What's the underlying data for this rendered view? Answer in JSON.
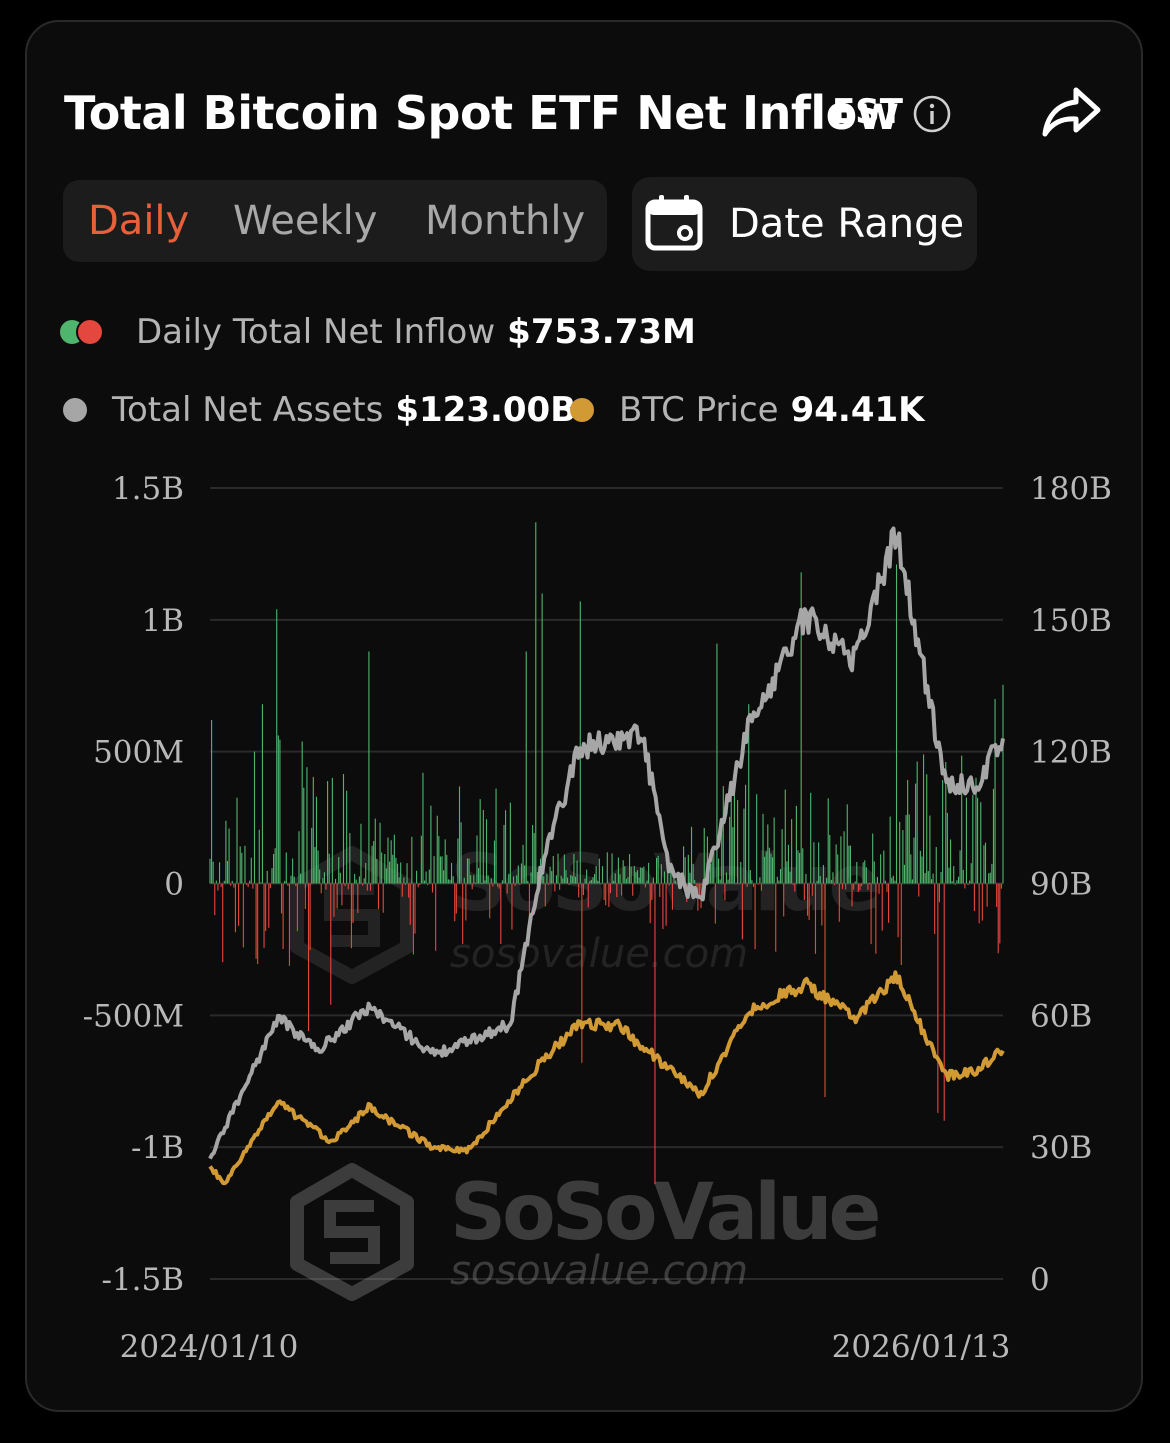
{
  "header": {
    "title": "Total Bitcoin Spot ETF Net Inflow",
    "timezone": "EST"
  },
  "tabs": [
    {
      "label": "Daily",
      "active": true
    },
    {
      "label": "Weekly",
      "active": false
    },
    {
      "label": "Monthly",
      "active": false
    }
  ],
  "date_range_label": "Date Range",
  "legend": {
    "inflow_label": "Daily Total Net Inflow",
    "inflow_value": "$753.73M",
    "assets_label": "Total Net Assets",
    "assets_value": "$123.00B",
    "price_label": "BTC Price",
    "price_value": "94.41K"
  },
  "watermark": {
    "brand": "SoSoValue",
    "url": "sosovalue.com"
  },
  "colors": {
    "accent": "#e8603a",
    "inflow_positive": "#4fb56d",
    "inflow_negative": "#e4473d",
    "net_assets_line": "#a6a6a6",
    "btc_price_line": "#d29a35"
  },
  "chart_data": {
    "type": "bar",
    "x_start": "2024/01/10",
    "x_end": "2026/01/13",
    "x_tick_labels": [
      "2024/01/10",
      "2026/01/13"
    ],
    "left_axis": {
      "ticks": [
        "1.5B",
        "1B",
        "500M",
        "0",
        "-500M",
        "-1B",
        "-1.5B"
      ],
      "ylim": [
        -1500000000,
        1500000000
      ]
    },
    "right_axis": {
      "ticks": [
        "180B",
        "150B",
        "120B",
        "90B",
        "60B",
        "30B",
        "0"
      ],
      "ylim": [
        0,
        180000000000
      ]
    },
    "grid": true,
    "series": [
      {
        "name": "Daily Total Net Inflow",
        "type": "bar",
        "axis": "left",
        "unit": "USD millions",
        "daily_points": 500,
        "approx_daily_values_sampled": [
          {
            "date": "2024/01/11",
            "value": 620
          },
          {
            "date": "2024/01/15",
            "value": -120
          },
          {
            "date": "2024/02/28",
            "value": 680
          },
          {
            "date": "2024/03/12",
            "value": 1040
          },
          {
            "date": "2024/04/10",
            "value": -560
          },
          {
            "date": "2024/05/01",
            "value": -460
          },
          {
            "date": "2024/06/05",
            "value": 880
          },
          {
            "date": "2024/07/25",
            "value": 420
          },
          {
            "date": "2024/10/01",
            "value": 360
          },
          {
            "date": "2024/10/29",
            "value": 880
          },
          {
            "date": "2024/11/07",
            "value": 1370
          },
          {
            "date": "2024/11/12",
            "value": 1100
          },
          {
            "date": "2024/12/17",
            "value": 1070
          },
          {
            "date": "2024/12/19",
            "value": -680
          },
          {
            "date": "2025/02/25",
            "value": -1140
          },
          {
            "date": "2025/04/23",
            "value": 910
          },
          {
            "date": "2025/05/22",
            "value": 680
          },
          {
            "date": "2025/07/10",
            "value": 1180
          },
          {
            "date": "2025/08/01",
            "value": -810
          },
          {
            "date": "2025/10/06",
            "value": 1210
          },
          {
            "date": "2025/11/13",
            "value": -870
          },
          {
            "date": "2025/11/20",
            "value": -900
          },
          {
            "date": "2026/01/05",
            "value": 700
          },
          {
            "date": "2026/01/13",
            "value": 753.73
          }
        ]
      },
      {
        "name": "Total Net Assets",
        "type": "line",
        "axis": "right",
        "unit": "USD billions",
        "points": [
          {
            "date": "2024/01/10",
            "value": 27.4
          },
          {
            "date": "2024/03/13",
            "value": 59.5
          },
          {
            "date": "2024/04/19",
            "value": 52
          },
          {
            "date": "2024/06/05",
            "value": 62
          },
          {
            "date": "2024/08/05",
            "value": 51
          },
          {
            "date": "2024/10/14",
            "value": 58
          },
          {
            "date": "2024/11/12",
            "value": 94
          },
          {
            "date": "2024/12/17",
            "value": 121
          },
          {
            "date": "2025/02/13",
            "value": 124
          },
          {
            "date": "2025/03/10",
            "value": 93
          },
          {
            "date": "2025/04/08",
            "value": 86
          },
          {
            "date": "2025/05/22",
            "value": 125
          },
          {
            "date": "2025/07/14",
            "value": 151
          },
          {
            "date": "2025/08/29",
            "value": 141
          },
          {
            "date": "2025/10/06",
            "value": 170
          },
          {
            "date": "2025/11/21",
            "value": 113
          },
          {
            "date": "2025/12/17",
            "value": 112
          },
          {
            "date": "2026/01/13",
            "value": 123.0
          }
        ]
      },
      {
        "name": "BTC Price",
        "type": "line",
        "axis": "right",
        "unit": "USD thousands",
        "points": [
          {
            "date": "2024/01/10",
            "value": 46.6
          },
          {
            "date": "2024/01/23",
            "value": 39.5
          },
          {
            "date": "2024/03/13",
            "value": 73.0
          },
          {
            "date": "2024/05/01",
            "value": 57.0
          },
          {
            "date": "2024/06/05",
            "value": 71.0
          },
          {
            "date": "2024/08/05",
            "value": 54.0
          },
          {
            "date": "2024/09/06",
            "value": 53.5
          },
          {
            "date": "2024/11/12",
            "value": 90.0
          },
          {
            "date": "2024/12/17",
            "value": 106.0
          },
          {
            "date": "2025/01/21",
            "value": 105.0
          },
          {
            "date": "2025/04/08",
            "value": 76.0
          },
          {
            "date": "2025/05/22",
            "value": 111.0
          },
          {
            "date": "2025/07/14",
            "value": 122.0
          },
          {
            "date": "2025/08/29",
            "value": 108.0
          },
          {
            "date": "2025/10/06",
            "value": 125.0
          },
          {
            "date": "2025/11/21",
            "value": 84.0
          },
          {
            "date": "2025/12/17",
            "value": 86.0
          },
          {
            "date": "2026/01/13",
            "value": 94.41
          }
        ]
      }
    ]
  }
}
